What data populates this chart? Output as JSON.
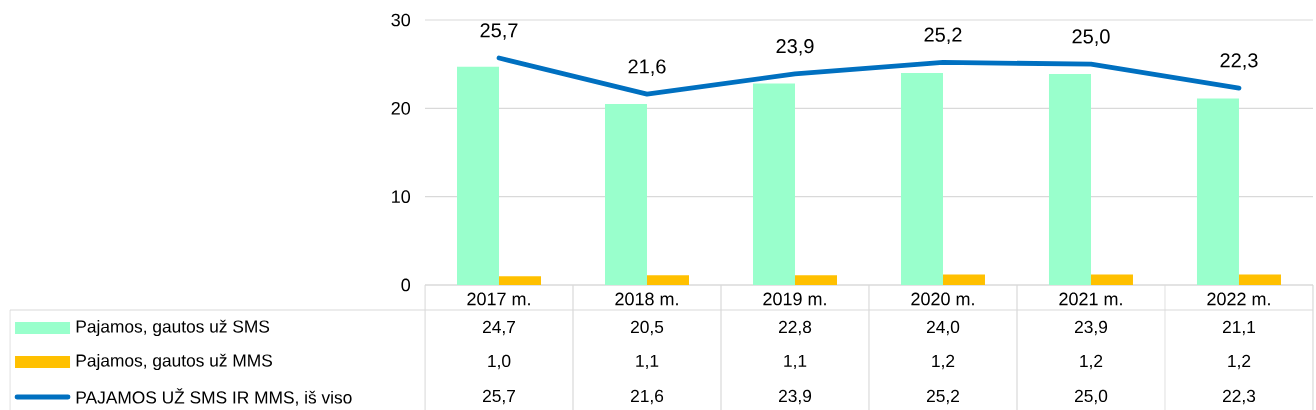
{
  "chart_data": {
    "type": "bar",
    "categories": [
      "2017 m.",
      "2018 m.",
      "2019 m.",
      "2020 m.",
      "2021 m.",
      "2022 m."
    ],
    "series": [
      {
        "name": "Pajamos, gautos už SMS",
        "color": "#99ffcc",
        "values": [
          24.7,
          20.5,
          22.8,
          24.0,
          23.9,
          21.1
        ],
        "value_labels": [
          "24,7",
          "20,5",
          "22,8",
          "24,0",
          "23,9",
          "21,1"
        ]
      },
      {
        "name": "Pajamos, gautos už MMS",
        "color": "#ffc000",
        "values": [
          1.0,
          1.1,
          1.1,
          1.2,
          1.2,
          1.2
        ],
        "value_labels": [
          "1,0",
          "1,1",
          "1,1",
          "1,2",
          "1,2",
          "1,2"
        ]
      },
      {
        "name": "PAJAMOS UŽ SMS IR MMS, iš viso",
        "color": "#0070c0",
        "type": "line",
        "values": [
          25.7,
          21.6,
          23.9,
          25.2,
          25.0,
          22.3
        ],
        "value_labels": [
          "25,7",
          "21,6",
          "23,9",
          "25,2",
          "25,0",
          "22,3"
        ]
      }
    ],
    "ylim": [
      0,
      30
    ],
    "yticks": [
      0,
      10,
      20,
      30
    ],
    "grid": "y",
    "legend": "bottom"
  }
}
